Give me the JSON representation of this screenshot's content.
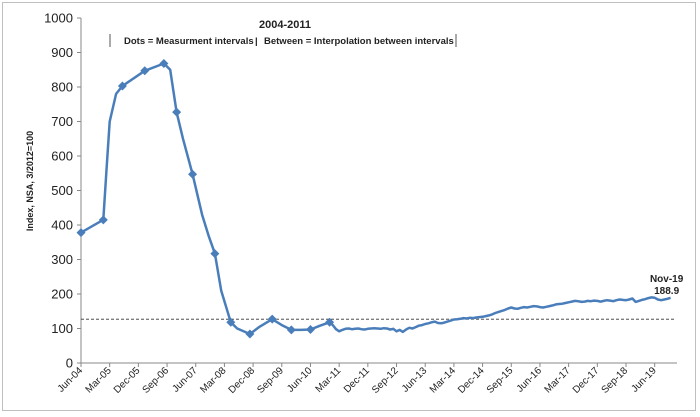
{
  "chart_data": {
    "type": "line",
    "title": "2004-2011",
    "subtitle_parts": [
      "Dots = Measurment intervals",
      "Between = Interpolation between intervals"
    ],
    "subtitle_separator": "|",
    "xlabel": "",
    "ylabel": "Index, NSA, 3/2012=100",
    "ylim": [
      0,
      1000
    ],
    "yticks": [
      0,
      100,
      200,
      300,
      400,
      500,
      600,
      700,
      800,
      900,
      1000
    ],
    "grid": false,
    "legend": "none",
    "x_tick_labels": [
      "Jun-04",
      "Mar-05",
      "Dec-05",
      "Sep-06",
      "Jun-07",
      "Mar-08",
      "Dec-08",
      "Sep-09",
      "Jun-10",
      "Mar-11",
      "Dec-11",
      "Sep-12",
      "Jun-13",
      "Mar-14",
      "Dec-14",
      "Sep-15",
      "Jun-16",
      "Mar-17",
      "Dec-17",
      "Sep-18",
      "Jun-19"
    ],
    "reference_line": {
      "y": 127,
      "style": "dashed"
    },
    "series_color": "#4a7ebb",
    "measurement_points": [
      [
        "Jun-04",
        378
      ],
      [
        "Jan-05",
        415
      ],
      [
        "Jul-05",
        803
      ],
      [
        "Feb-06",
        847
      ],
      [
        "Aug-06",
        868
      ],
      [
        "Dec-06",
        727
      ],
      [
        "May-07",
        547
      ],
      [
        "Dec-07",
        317
      ],
      [
        "May-08",
        118
      ],
      [
        "Nov-08",
        84
      ],
      [
        "Jun-09",
        127
      ],
      [
        "Dec-09",
        96
      ],
      [
        "Jun-10",
        97
      ],
      [
        "Dec-10",
        118
      ]
    ],
    "interpolated_points": [
      [
        "Feb-05",
        560
      ],
      [
        "Mar-05",
        700
      ],
      [
        "May-05",
        780
      ],
      [
        "Oct-06",
        850
      ],
      [
        "Feb-07",
        650
      ],
      [
        "Aug-07",
        430
      ],
      [
        "Oct-07",
        370
      ],
      [
        "Feb-08",
        210
      ],
      [
        "Jul-08",
        100
      ],
      [
        "Feb-09",
        105
      ],
      [
        "Sep-09",
        110
      ],
      [
        "Mar-10",
        96
      ],
      [
        "Sep-10",
        108
      ]
    ],
    "monthly_series": [
      [
        "Jan-11",
        110
      ],
      [
        "Feb-11",
        98
      ],
      [
        "Mar-11",
        92
      ],
      [
        "Apr-11",
        96
      ],
      [
        "May-11",
        99
      ],
      [
        "Jun-11",
        100
      ],
      [
        "Jul-11",
        98
      ],
      [
        "Aug-11",
        99
      ],
      [
        "Sep-11",
        100
      ],
      [
        "Oct-11",
        98
      ],
      [
        "Nov-11",
        97
      ],
      [
        "Dec-11",
        99
      ],
      [
        "Jan-12",
        100
      ],
      [
        "Feb-12",
        101
      ],
      [
        "Mar-12",
        100
      ],
      [
        "Apr-12",
        99
      ],
      [
        "May-12",
        101
      ],
      [
        "Jun-12",
        100
      ],
      [
        "Jul-12",
        97
      ],
      [
        "Aug-12",
        99
      ],
      [
        "Sep-12",
        92
      ],
      [
        "Oct-12",
        96
      ],
      [
        "Nov-12",
        90
      ],
      [
        "Dec-12",
        97
      ],
      [
        "Jan-13",
        102
      ],
      [
        "Feb-13",
        100
      ],
      [
        "Mar-13",
        104
      ],
      [
        "Apr-13",
        108
      ],
      [
        "May-13",
        110
      ],
      [
        "Jun-13",
        113
      ],
      [
        "Jul-13",
        115
      ],
      [
        "Aug-13",
        118
      ],
      [
        "Sep-13",
        120
      ],
      [
        "Oct-13",
        116
      ],
      [
        "Nov-13",
        115
      ],
      [
        "Dec-13",
        117
      ],
      [
        "Jan-14",
        120
      ],
      [
        "Feb-14",
        123
      ],
      [
        "Mar-14",
        126
      ],
      [
        "Apr-14",
        127
      ],
      [
        "May-14",
        128
      ],
      [
        "Jun-14",
        130
      ],
      [
        "Jul-14",
        129
      ],
      [
        "Aug-14",
        131
      ],
      [
        "Sep-14",
        130
      ],
      [
        "Oct-14",
        132
      ],
      [
        "Nov-14",
        133
      ],
      [
        "Dec-14",
        134
      ],
      [
        "Jan-15",
        136
      ],
      [
        "Feb-15",
        138
      ],
      [
        "Mar-15",
        141
      ],
      [
        "Apr-15",
        145
      ],
      [
        "May-15",
        148
      ],
      [
        "Jun-15",
        151
      ],
      [
        "Jul-15",
        154
      ],
      [
        "Aug-15",
        158
      ],
      [
        "Sep-15",
        161
      ],
      [
        "Oct-15",
        158
      ],
      [
        "Nov-15",
        157
      ],
      [
        "Dec-15",
        160
      ],
      [
        "Jan-16",
        162
      ],
      [
        "Feb-16",
        161
      ],
      [
        "Mar-16",
        163
      ],
      [
        "Apr-16",
        165
      ],
      [
        "May-16",
        164
      ],
      [
        "Jun-16",
        162
      ],
      [
        "Jul-16",
        161
      ],
      [
        "Aug-16",
        163
      ],
      [
        "Sep-16",
        165
      ],
      [
        "Oct-16",
        167
      ],
      [
        "Nov-16",
        170
      ],
      [
        "Dec-16",
        171
      ],
      [
        "Jan-17",
        172
      ],
      [
        "Feb-17",
        174
      ],
      [
        "Mar-17",
        176
      ],
      [
        "Apr-17",
        178
      ],
      [
        "May-17",
        180
      ],
      [
        "Jun-17",
        179
      ],
      [
        "Jul-17",
        177
      ],
      [
        "Aug-17",
        178
      ],
      [
        "Sep-17",
        180
      ],
      [
        "Oct-17",
        179
      ],
      [
        "Nov-17",
        181
      ],
      [
        "Dec-17",
        180
      ],
      [
        "Jan-18",
        178
      ],
      [
        "Feb-18",
        180
      ],
      [
        "Mar-18",
        182
      ],
      [
        "Apr-18",
        181
      ],
      [
        "May-18",
        179
      ],
      [
        "Jun-18",
        182
      ],
      [
        "Jul-18",
        184
      ],
      [
        "Aug-18",
        183
      ],
      [
        "Sep-18",
        182
      ],
      [
        "Oct-18",
        184
      ],
      [
        "Nov-18",
        187
      ],
      [
        "Dec-18",
        177
      ],
      [
        "Jan-19",
        180
      ],
      [
        "Feb-19",
        183
      ],
      [
        "Mar-19",
        185
      ],
      [
        "Apr-19",
        188
      ],
      [
        "May-19",
        190
      ],
      [
        "Jun-19",
        189
      ],
      [
        "Jul-19",
        184
      ],
      [
        "Aug-19",
        182
      ],
      [
        "Sep-19",
        184
      ],
      [
        "Oct-19",
        186
      ],
      [
        "Nov-19",
        188.9
      ]
    ],
    "annotation": {
      "date": "Nov-19",
      "value_text": "188.9"
    }
  }
}
